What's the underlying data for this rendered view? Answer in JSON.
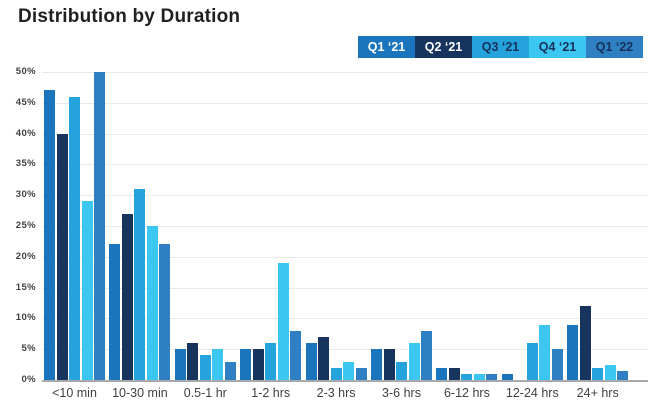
{
  "title": "Distribution by Duration",
  "axis": {
    "ytick_labels": [
      "0%",
      "5%",
      "10%",
      "15%",
      "20%",
      "25%",
      "30%",
      "35%",
      "40%",
      "45%",
      "50%"
    ],
    "ytick_step": 5
  },
  "style_colors": {
    "title_text": "#221f20",
    "axis_line": "#a7a9ac",
    "gridline": "#e8e9ea",
    "tick_text": "#414042"
  },
  "chart_data": {
    "type": "bar",
    "title": "Distribution by Duration",
    "xlabel": "",
    "ylabel": "",
    "ylim": [
      0,
      50
    ],
    "grid": true,
    "legend_position": "top-right",
    "categories": [
      "<10 min",
      "10-30 min",
      "0.5-1 hr",
      "1-2 hrs",
      "2-3 hrs",
      "3-6 hrs",
      "6-12 hrs",
      "12-24 hrs",
      "24+ hrs"
    ],
    "series": [
      {
        "name": "Q1 ‘21",
        "color": "#1b75bc",
        "label_color": "#ffffff",
        "values": [
          47,
          22,
          5,
          5,
          6,
          5,
          2,
          1,
          9
        ]
      },
      {
        "name": "Q2 ‘21",
        "color": "#17345f",
        "label_color": "#ffffff",
        "values": [
          40,
          27,
          6,
          5,
          7,
          5,
          2,
          0,
          12
        ]
      },
      {
        "name": "Q3 ‘21",
        "color": "#25a3dd",
        "label_color": "#16325c",
        "values": [
          46,
          31,
          4,
          6,
          2,
          3,
          1,
          6,
          2
        ]
      },
      {
        "name": "Q4 ‘21",
        "color": "#3cc7f2",
        "label_color": "#16325c",
        "values": [
          29,
          25,
          5,
          19,
          3,
          6,
          1,
          9,
          2.5
        ]
      },
      {
        "name": "Q1 ‘22",
        "color": "#2e80c2",
        "label_color": "#16325c",
        "values": [
          50,
          22,
          3,
          8,
          2,
          8,
          1,
          5,
          1.5
        ]
      }
    ]
  }
}
